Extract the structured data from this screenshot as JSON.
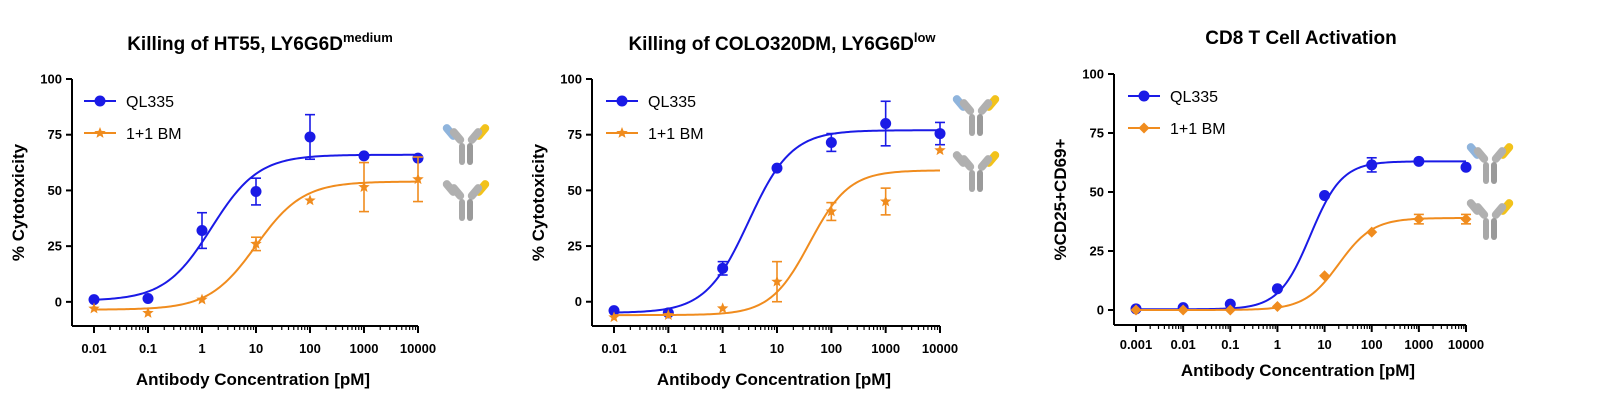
{
  "colors": {
    "ql335": "#1a1ae6",
    "bm": "#f08c1e",
    "axis": "#000000"
  },
  "chart_data": [
    {
      "type": "line",
      "title": "Killing of HT55, LY6G6D",
      "title_superscript": "medium",
      "xlabel": "Antibody Concentration [pM]",
      "ylabel": "% Cytotoxicity",
      "xscale": "log",
      "x_ticks": [
        "0.01",
        "0.1",
        "1",
        "10",
        "100",
        "1000",
        "10000"
      ],
      "x_tick_values": [
        0.01,
        0.1,
        1,
        10,
        100,
        1000,
        10000
      ],
      "xlim": [
        0.01,
        10000
      ],
      "y_ticks": [
        "0",
        "25",
        "50",
        "75",
        "100"
      ],
      "ylim": [
        -5,
        100
      ],
      "legend_position": "top-left",
      "icons": [
        "antibody-icon",
        "antibody-icon"
      ],
      "series": [
        {
          "name": "QL335",
          "color": "#1a1ae6",
          "marker": "circle",
          "x": [
            0.01,
            0.1,
            1,
            10,
            100,
            1000,
            10000
          ],
          "y": [
            1,
            1.5,
            32,
            49.5,
            74,
            65.5,
            64.5
          ],
          "err": [
            0,
            0,
            8,
            6,
            10,
            0,
            0
          ],
          "fit": {
            "bottom": 0.5,
            "top": 66,
            "ec50": 1.5,
            "hill": 1.0
          }
        },
        {
          "name": "1+1 BM",
          "color": "#f08c1e",
          "marker": "star",
          "x": [
            0.01,
            0.1,
            1,
            10,
            100,
            1000,
            10000
          ],
          "y": [
            -3,
            -5,
            1,
            26,
            45.5,
            51.5,
            55
          ],
          "err": [
            0,
            0,
            0,
            3,
            0,
            11,
            10
          ],
          "fit": {
            "bottom": -3.5,
            "top": 54,
            "ec50": 10,
            "hill": 1.0
          }
        }
      ]
    },
    {
      "type": "line",
      "title": "Killing of COLO320DM, LY6G6D",
      "title_superscript": "low",
      "xlabel": "Antibody Concentration [pM]",
      "ylabel": "% Cytotoxicity",
      "xscale": "log",
      "x_ticks": [
        "0.01",
        "0.1",
        "1",
        "10",
        "100",
        "1000",
        "10000"
      ],
      "x_tick_values": [
        0.01,
        0.1,
        1,
        10,
        100,
        1000,
        10000
      ],
      "xlim": [
        0.01,
        10000
      ],
      "y_ticks": [
        "0",
        "25",
        "50",
        "75",
        "100"
      ],
      "ylim": [
        -10,
        100
      ],
      "legend_position": "top-left",
      "icons": [
        "antibody-icon",
        "antibody-icon"
      ],
      "series": [
        {
          "name": "QL335",
          "color": "#1a1ae6",
          "marker": "circle",
          "x": [
            0.01,
            0.1,
            1,
            10,
            100,
            1000,
            10000
          ],
          "y": [
            -4,
            -5,
            15,
            60,
            71.5,
            80,
            75.5
          ],
          "err": [
            0,
            0,
            3,
            0,
            4,
            10,
            5
          ],
          "fit": {
            "bottom": -5,
            "top": 77,
            "ec50": 3,
            "hill": 1.1
          }
        },
        {
          "name": "1+1 BM",
          "color": "#f08c1e",
          "marker": "star",
          "x": [
            0.01,
            0.1,
            1,
            10,
            100,
            1000,
            10000
          ],
          "y": [
            -7,
            -6,
            -3,
            9,
            40.5,
            45,
            68
          ],
          "err": [
            0,
            0,
            0,
            9,
            4,
            6,
            0
          ],
          "fit": {
            "bottom": -6,
            "top": 59,
            "ec50": 40,
            "hill": 1.2
          }
        }
      ]
    },
    {
      "type": "line",
      "title": "CD8 T Cell Activation",
      "title_superscript": "",
      "xlabel": "Antibody Concentration [pM]",
      "ylabel": "%CD25+CD69+",
      "xscale": "log",
      "x_ticks": [
        "0.001",
        "0.01",
        "0.1",
        "1",
        "10",
        "100",
        "1000",
        "10000"
      ],
      "x_tick_values": [
        0.001,
        0.01,
        0.1,
        1,
        10,
        100,
        1000,
        10000
      ],
      "xlim": [
        0.001,
        10000
      ],
      "y_ticks": [
        "0",
        "25",
        "50",
        "75",
        "100"
      ],
      "ylim": [
        0,
        100
      ],
      "legend_position": "top-left",
      "icons": [
        "antibody-icon",
        "antibody-icon"
      ],
      "series": [
        {
          "name": "QL335",
          "color": "#1a1ae6",
          "marker": "circle",
          "x": [
            0.001,
            0.01,
            0.1,
            1,
            10,
            100,
            1000,
            10000
          ],
          "y": [
            0.5,
            1,
            2.5,
            9,
            48.5,
            61.5,
            63,
            60.5
          ],
          "err": [
            0,
            0,
            0,
            0,
            0,
            3,
            0,
            0
          ],
          "fit": {
            "bottom": 0.3,
            "top": 63,
            "ec50": 5,
            "hill": 1.3
          }
        },
        {
          "name": "1+1 BM",
          "color": "#f08c1e",
          "marker": "diamond",
          "x": [
            0.001,
            0.01,
            0.1,
            1,
            10,
            100,
            1000,
            10000
          ],
          "y": [
            0,
            0,
            0,
            1.5,
            14.5,
            33,
            38.5,
            38.5
          ],
          "err": [
            0,
            0,
            0,
            0,
            0,
            0,
            2,
            2
          ],
          "fit": {
            "bottom": 0,
            "top": 39,
            "ec50": 20,
            "hill": 1.2
          }
        }
      ]
    }
  ]
}
